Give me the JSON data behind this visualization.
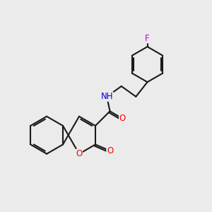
{
  "bg_color": "#ebebeb",
  "bond_color": "#1a1a1a",
  "bond_width": 1.5,
  "dbo": 0.08,
  "atom_colors": {
    "O": "#ff0000",
    "N": "#0000cc",
    "F": "#cc00cc"
  },
  "font_size": 8.5,
  "figsize": [
    3.0,
    3.0
  ],
  "dpi": 100,
  "xlim": [
    0,
    10
  ],
  "ylim": [
    0,
    10
  ]
}
